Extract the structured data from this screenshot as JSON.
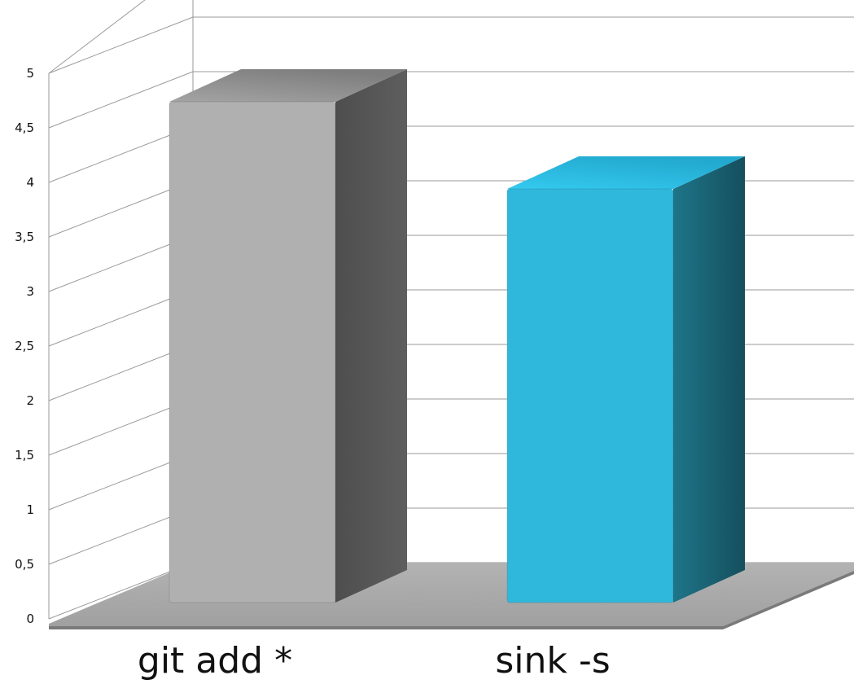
{
  "chart_data": {
    "type": "bar",
    "view": "3d",
    "categories": [
      "git add *",
      "sink -s"
    ],
    "series": [
      {
        "values": [
          4.6,
          3.8
        ],
        "colors": [
          "#b3b3b3",
          "#31b8dc"
        ]
      }
    ],
    "title": "",
    "xlabel": "",
    "ylabel": "",
    "ylim": [
      0,
      5
    ],
    "yticks": [
      "0",
      "0,5",
      "1",
      "1,5",
      "2",
      "2,5",
      "3",
      "3,5",
      "4",
      "4,5",
      "5"
    ],
    "grid": true,
    "legend": "none"
  },
  "colors": {
    "gridline": "#9a9a9a",
    "floor": "#a9a9a9",
    "floor_edge": "#7a7a7a",
    "gray_front": "#b0b0b0",
    "gray_side": "#575757",
    "gray_top": "#8e8e8e",
    "blue_front": "#30b8dc",
    "blue_side": "#1b6678",
    "blue_top": "#2cc3ea"
  }
}
